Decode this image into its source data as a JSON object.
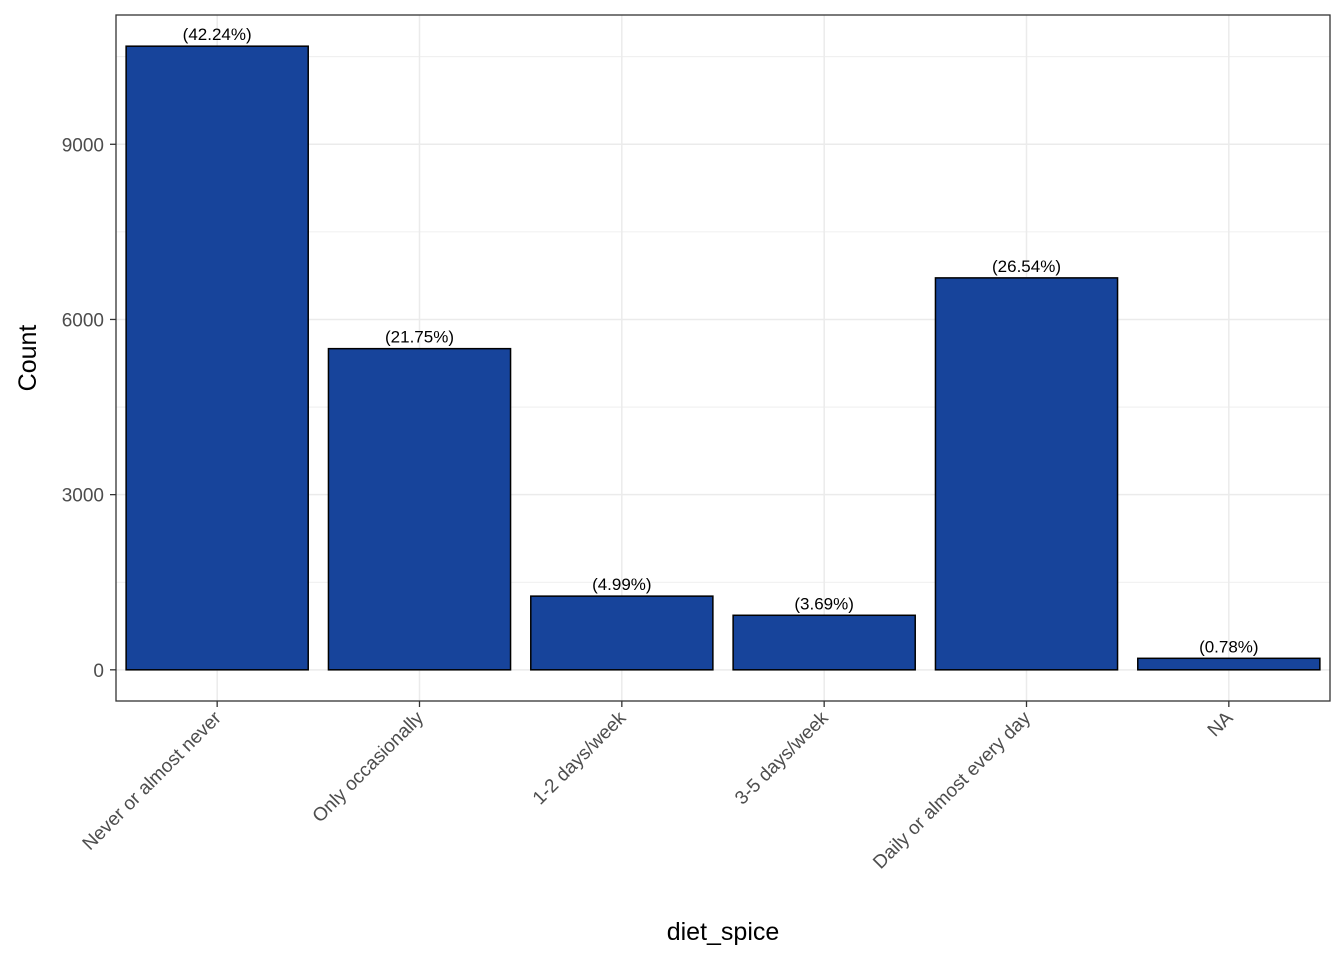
{
  "chart_data": {
    "type": "bar",
    "xlabel": "diet_spice",
    "ylabel": "Count",
    "categories": [
      "Never or almost never",
      "Only occasionally",
      "1-2 days/week",
      "3-5 days/week",
      "Daily or almost every day",
      "NA"
    ],
    "values": [
      10680,
      5500,
      1262,
      934,
      6712,
      197
    ],
    "data_labels": [
      "(42.24%)",
      "(21.75%)",
      "(4.99%)",
      "(3.69%)",
      "(26.54%)",
      "(0.78%)"
    ],
    "y_ticks": [
      0,
      3000,
      6000,
      9000
    ],
    "y_tick_labels": [
      "0",
      "3000",
      "6000",
      "9000"
    ],
    "ylim": [
      -534,
      11214
    ],
    "grid": true,
    "legend": "none",
    "colors": {
      "bar_fill": "#17449B",
      "bar_outline": "#000000",
      "grid": "#EBEBEB",
      "panel_border": "#333333"
    }
  }
}
